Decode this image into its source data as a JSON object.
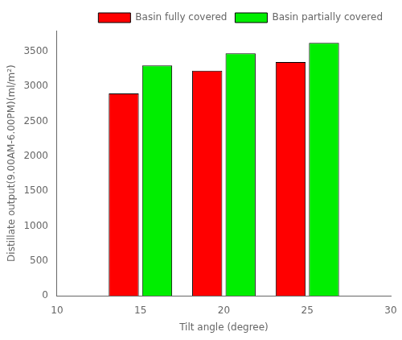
{
  "chart_data": {
    "type": "bar",
    "x": [
      15,
      20,
      25
    ],
    "series": [
      {
        "name": "Basin fully covered",
        "color": "#ff0000",
        "values": [
          2900,
          3225,
          3350
        ]
      },
      {
        "name": "Basin partially covered",
        "color": "#00ee00",
        "values": [
          3300,
          3475,
          3625
        ]
      }
    ],
    "xlabel": "Tilt angle (degree)",
    "ylabel": "Distillate output(9.00AM-6.00PM)(ml/m²)",
    "xlim": [
      10,
      30
    ],
    "ylim": [
      0,
      3800
    ],
    "xticks": [
      10,
      15,
      20,
      25,
      30
    ],
    "yticks": [
      0,
      500,
      1000,
      1500,
      2000,
      2500,
      3000,
      3500
    ],
    "grid": false,
    "legend": "upper right"
  }
}
